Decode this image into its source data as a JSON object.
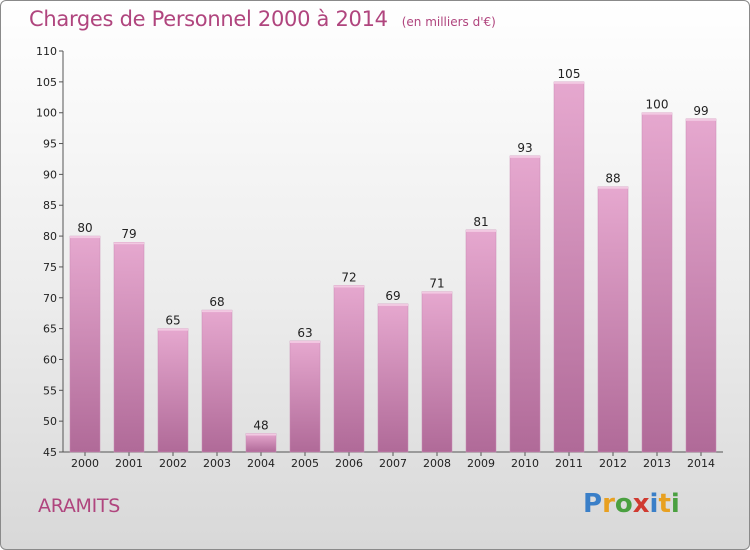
{
  "header": {
    "title": "Charges de Personnel 2000 à 2014",
    "subtitle": "(en milliers d'€)"
  },
  "footer": {
    "commune": "ARAMITS",
    "logo_letters": [
      "P",
      "r",
      "o",
      "x",
      "i",
      "t",
      "i"
    ],
    "logo_colors": [
      "#3a7fc8",
      "#e8a020",
      "#4aa040",
      "#d03a30",
      "#3a7fc8",
      "#e8a020",
      "#4aa040"
    ]
  },
  "chart_data": {
    "type": "bar",
    "title": "Charges de Personnel 2000 à 2014",
    "subtitle": "(en milliers d'€)",
    "categories": [
      "2000",
      "2001",
      "2002",
      "2003",
      "2004",
      "2005",
      "2006",
      "2007",
      "2008",
      "2009",
      "2010",
      "2011",
      "2012",
      "2013",
      "2014"
    ],
    "values": [
      80,
      79,
      65,
      68,
      48,
      63,
      72,
      69,
      71,
      81,
      93,
      105,
      88,
      100,
      99
    ],
    "ylim": [
      45,
      110
    ],
    "yticks": [
      45,
      50,
      55,
      60,
      65,
      70,
      75,
      80,
      85,
      90,
      95,
      100,
      105,
      110
    ],
    "grid": false,
    "bar_color_top": "#e6a8cf",
    "bar_color_bottom": "#b06a98"
  }
}
